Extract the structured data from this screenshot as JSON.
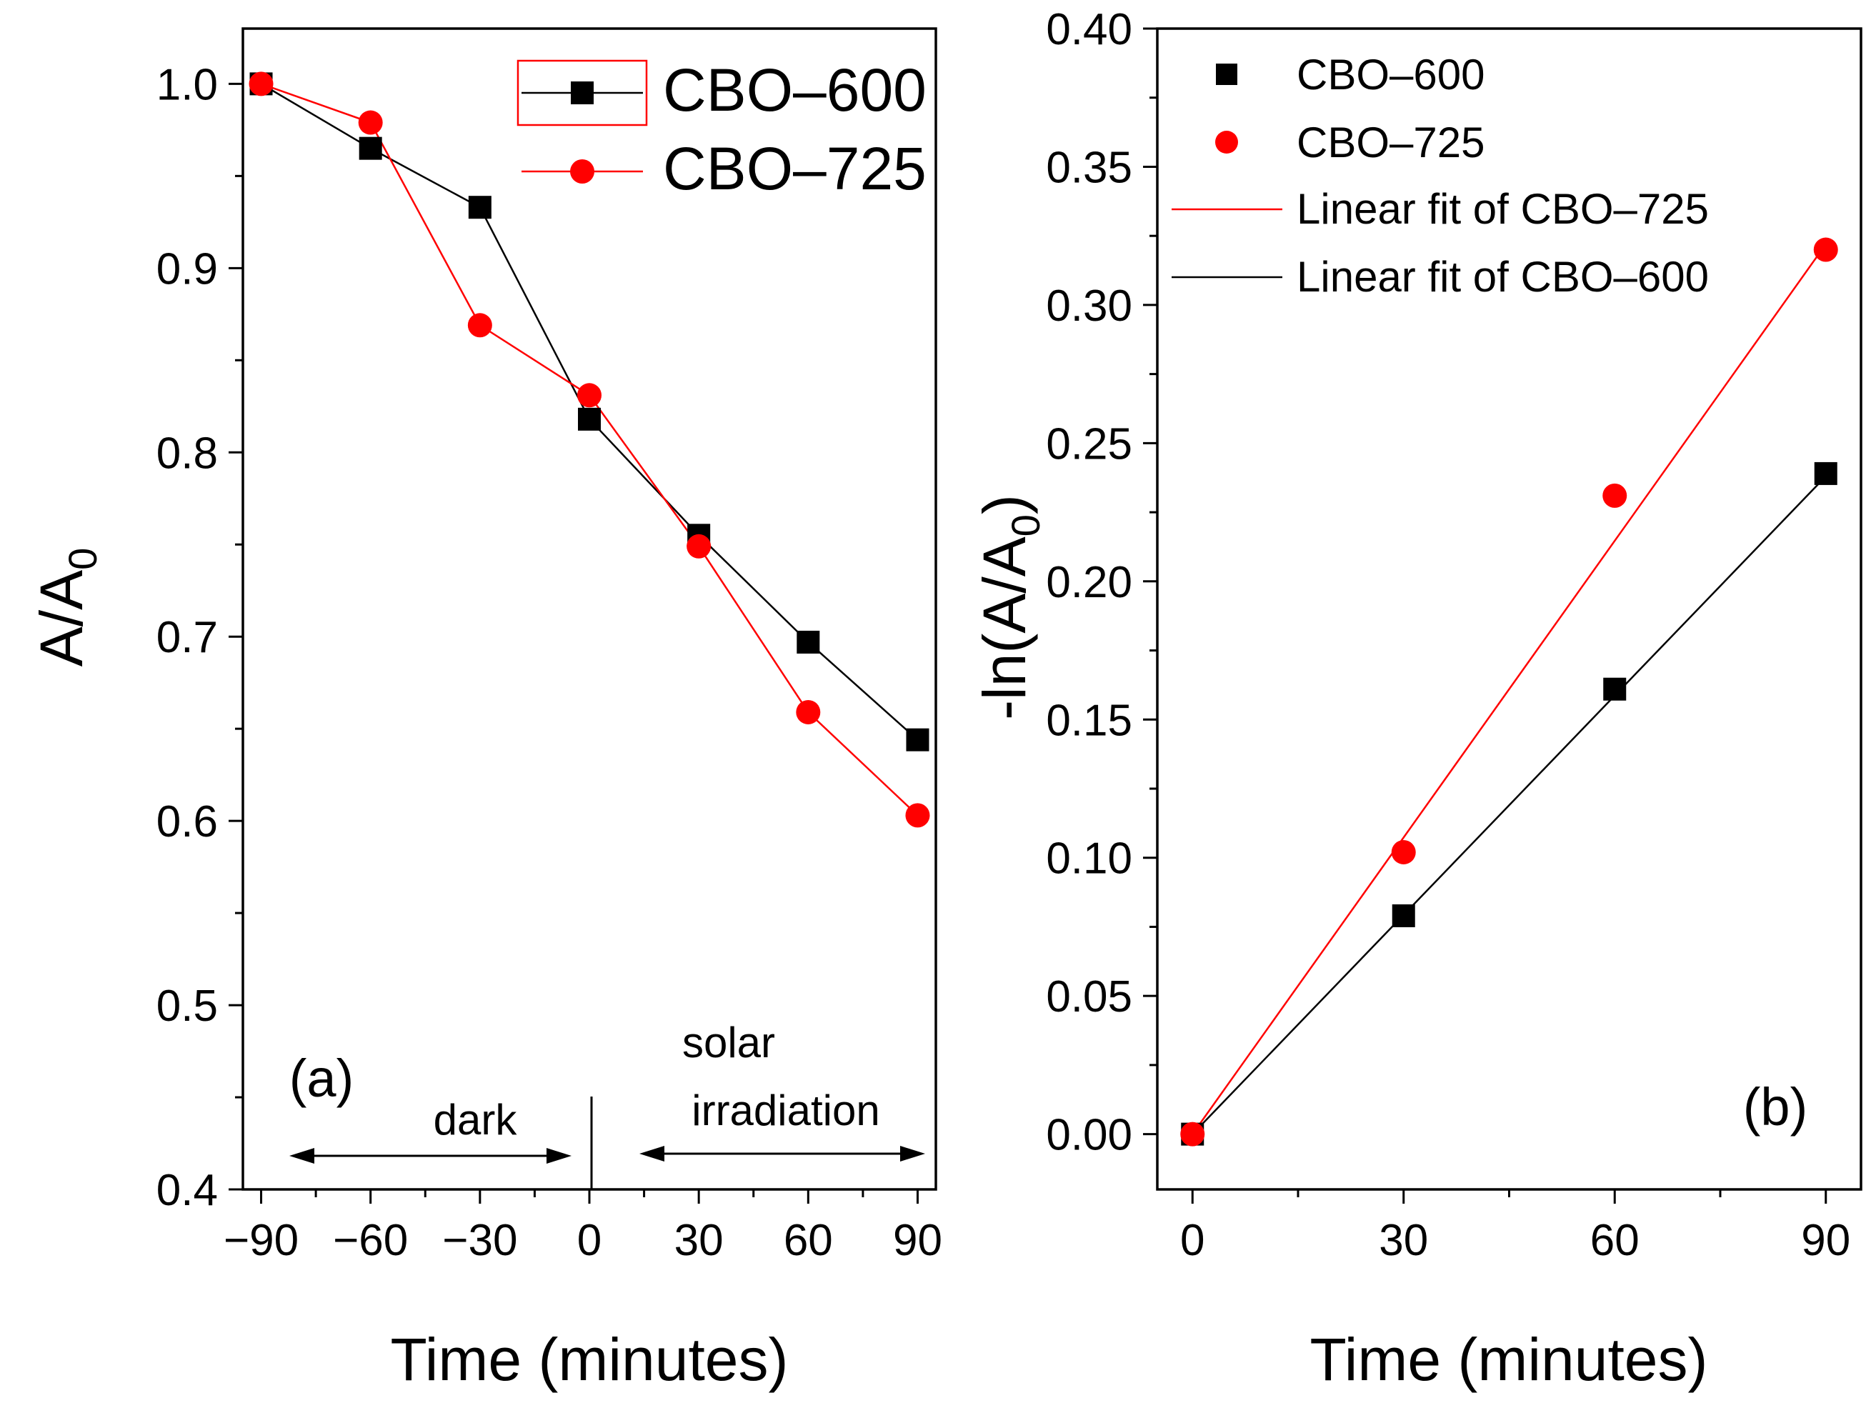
{
  "chart_data": [
    {
      "type": "line",
      "panel_label": "(a)",
      "xlabel": "Time (minutes)",
      "ylabel": "A/A",
      "ylabel_sub": "0",
      "xlim": [
        -95,
        95
      ],
      "ylim": [
        0.4,
        1.03
      ],
      "xticks": [
        -90,
        -60,
        -30,
        0,
        30,
        60,
        90
      ],
      "xtick_labels": [
        "−90",
        "−60",
        "−30",
        "0",
        "30",
        "60",
        "90"
      ],
      "yticks": [
        0.4,
        0.5,
        0.6,
        0.7,
        0.8,
        0.9,
        1.0
      ],
      "ytick_labels": [
        "0.4",
        "0.5",
        "0.6",
        "0.7",
        "0.8",
        "0.9",
        "1.0"
      ],
      "x": [
        -90,
        -60,
        -30,
        0,
        30,
        60,
        90
      ],
      "series": [
        {
          "name": "CBO–600",
          "color": "#000000",
          "marker": "square",
          "values": [
            1.0,
            0.965,
            0.933,
            0.818,
            0.755,
            0.697,
            0.644
          ]
        },
        {
          "name": "CBO–725",
          "color": "#ff0000",
          "marker": "circle",
          "values": [
            1.0,
            0.979,
            0.869,
            0.831,
            0.749,
            0.659,
            0.603
          ]
        }
      ],
      "legend_position": "top-right",
      "annotations": {
        "dark": "dark",
        "solar_line1": "solar",
        "solar_line2": "irradiation"
      }
    },
    {
      "type": "scatter",
      "panel_label": "(b)",
      "xlabel": "Time (minutes)",
      "ylabel": "-ln(A/A",
      "ylabel_sub": "0",
      "ylabel_close": ")",
      "xlim": [
        -5,
        95
      ],
      "ylim": [
        -0.02,
        0.4
      ],
      "xticks": [
        0,
        30,
        60,
        90
      ],
      "xtick_labels": [
        "0",
        "30",
        "60",
        "90"
      ],
      "yticks": [
        0.0,
        0.05,
        0.1,
        0.15,
        0.2,
        0.25,
        0.3,
        0.35,
        0.4
      ],
      "ytick_labels": [
        "0.00",
        "0.05",
        "0.10",
        "0.15",
        "0.20",
        "0.25",
        "0.30",
        "0.35",
        "0.40"
      ],
      "x": [
        0,
        30,
        60,
        90
      ],
      "series": [
        {
          "name": "CBO–600",
          "color": "#000000",
          "marker": "square",
          "values": [
            0.0,
            0.079,
            0.161,
            0.239
          ]
        },
        {
          "name": "CBO–725",
          "color": "#ff0000",
          "marker": "circle",
          "values": [
            0.0,
            0.102,
            0.231,
            0.32
          ]
        }
      ],
      "fits": [
        {
          "name": "Linear fit of CBO–725",
          "color": "#ff0000",
          "x": [
            0,
            90
          ],
          "y": [
            0.0,
            0.322
          ]
        },
        {
          "name": "Linear fit of CBO–600",
          "color": "#000000",
          "x": [
            0,
            90
          ],
          "y": [
            0.0,
            0.238
          ]
        }
      ],
      "legend_position": "top-left"
    }
  ]
}
